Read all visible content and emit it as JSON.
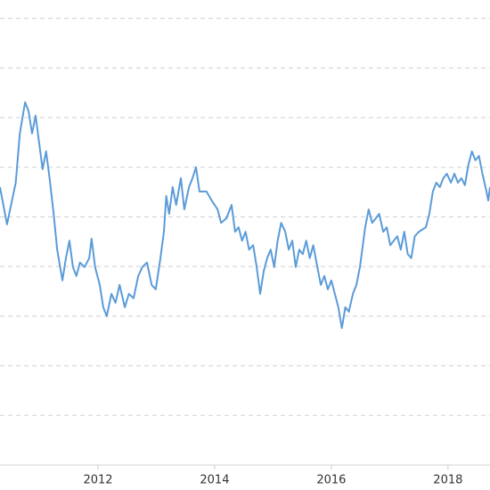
{
  "chart_data": {
    "type": "line",
    "x": [
      2010.32,
      2010.44,
      2010.59,
      2010.66,
      2010.75,
      2010.81,
      2010.87,
      2010.93,
      2010.99,
      2011.05,
      2011.11,
      2011.17,
      2011.24,
      2011.3,
      2011.39,
      2011.45,
      2011.51,
      2011.57,
      2011.63,
      2011.69,
      2011.77,
      2011.85,
      2011.89,
      2011.95,
      2012.03,
      2012.09,
      2012.15,
      2012.23,
      2012.3,
      2012.37,
      2012.46,
      2012.53,
      2012.61,
      2012.69,
      2012.76,
      2012.84,
      2012.92,
      2012.99,
      2013.07,
      2013.13,
      2013.17,
      2013.22,
      2013.28,
      2013.34,
      2013.42,
      2013.48,
      2013.56,
      2013.62,
      2013.68,
      2013.74,
      2013.86,
      2013.95,
      2014.05,
      2014.11,
      2014.2,
      2014.29,
      2014.35,
      2014.41,
      2014.47,
      2014.53,
      2014.59,
      2014.66,
      2014.72,
      2014.78,
      2014.84,
      2014.9,
      2014.96,
      2015.02,
      2015.08,
      2015.14,
      2015.21,
      2015.27,
      2015.33,
      2015.39,
      2015.45,
      2015.51,
      2015.57,
      2015.63,
      2015.69,
      2015.76,
      2015.82,
      2015.88,
      2015.94,
      2016.0,
      2016.06,
      2016.12,
      2016.18,
      2016.24,
      2016.3,
      2016.37,
      2016.43,
      2016.49,
      2016.53,
      2016.58,
      2016.64,
      2016.7,
      2016.76,
      2016.82,
      2016.89,
      2016.95,
      2017.01,
      2017.07,
      2017.13,
      2017.19,
      2017.25,
      2017.31,
      2017.37,
      2017.43,
      2017.5,
      2017.62,
      2017.68,
      2017.74,
      2017.8,
      2017.86,
      2017.92,
      2017.98,
      2018.05,
      2018.11,
      2018.17,
      2018.23,
      2018.29,
      2018.35,
      2018.41,
      2018.47,
      2018.53,
      2018.59,
      2018.66,
      2018.69,
      2018.72
    ],
    "series": [
      {
        "color": "#5b9bd8",
        "values": [
          5.6,
          4.85,
          5.69,
          6.68,
          7.31,
          7.13,
          6.68,
          7.04,
          6.5,
          5.96,
          6.32,
          5.78,
          5.06,
          4.34,
          3.72,
          4.17,
          4.52,
          3.99,
          3.81,
          4.08,
          3.99,
          4.17,
          4.56,
          3.99,
          3.63,
          3.18,
          3.0,
          3.45,
          3.27,
          3.63,
          3.18,
          3.45,
          3.36,
          3.81,
          3.99,
          4.08,
          3.63,
          3.54,
          4.17,
          4.7,
          5.42,
          5.06,
          5.6,
          5.24,
          5.78,
          5.15,
          5.6,
          5.78,
          6.0,
          5.51,
          5.51,
          5.33,
          5.15,
          4.88,
          4.97,
          5.24,
          4.7,
          4.79,
          4.52,
          4.7,
          4.34,
          4.43,
          3.99,
          3.45,
          3.9,
          4.17,
          4.34,
          3.99,
          4.52,
          4.88,
          4.7,
          4.34,
          4.52,
          3.99,
          4.34,
          4.25,
          4.52,
          4.17,
          4.43,
          3.99,
          3.63,
          3.81,
          3.54,
          3.72,
          3.45,
          3.18,
          2.76,
          3.18,
          3.09,
          3.45,
          3.63,
          3.99,
          4.34,
          4.79,
          5.15,
          4.88,
          4.97,
          5.06,
          4.7,
          4.79,
          4.43,
          4.52,
          4.61,
          4.34,
          4.7,
          4.25,
          4.17,
          4.61,
          4.7,
          4.79,
          5.06,
          5.51,
          5.69,
          5.6,
          5.78,
          5.87,
          5.69,
          5.87,
          5.69,
          5.78,
          5.64,
          6.05,
          6.32,
          6.14,
          6.23,
          5.87,
          5.51,
          5.33,
          5.6
        ]
      }
    ],
    "xlim": [
      2010.32,
      2018.72
    ],
    "xticks": [
      2012,
      2014,
      2016,
      2018
    ],
    "ylim": [
      0,
      9.37
    ],
    "yticks": [
      0,
      1,
      2,
      3,
      4,
      5,
      6,
      7,
      8,
      9
    ],
    "grid": true
  }
}
